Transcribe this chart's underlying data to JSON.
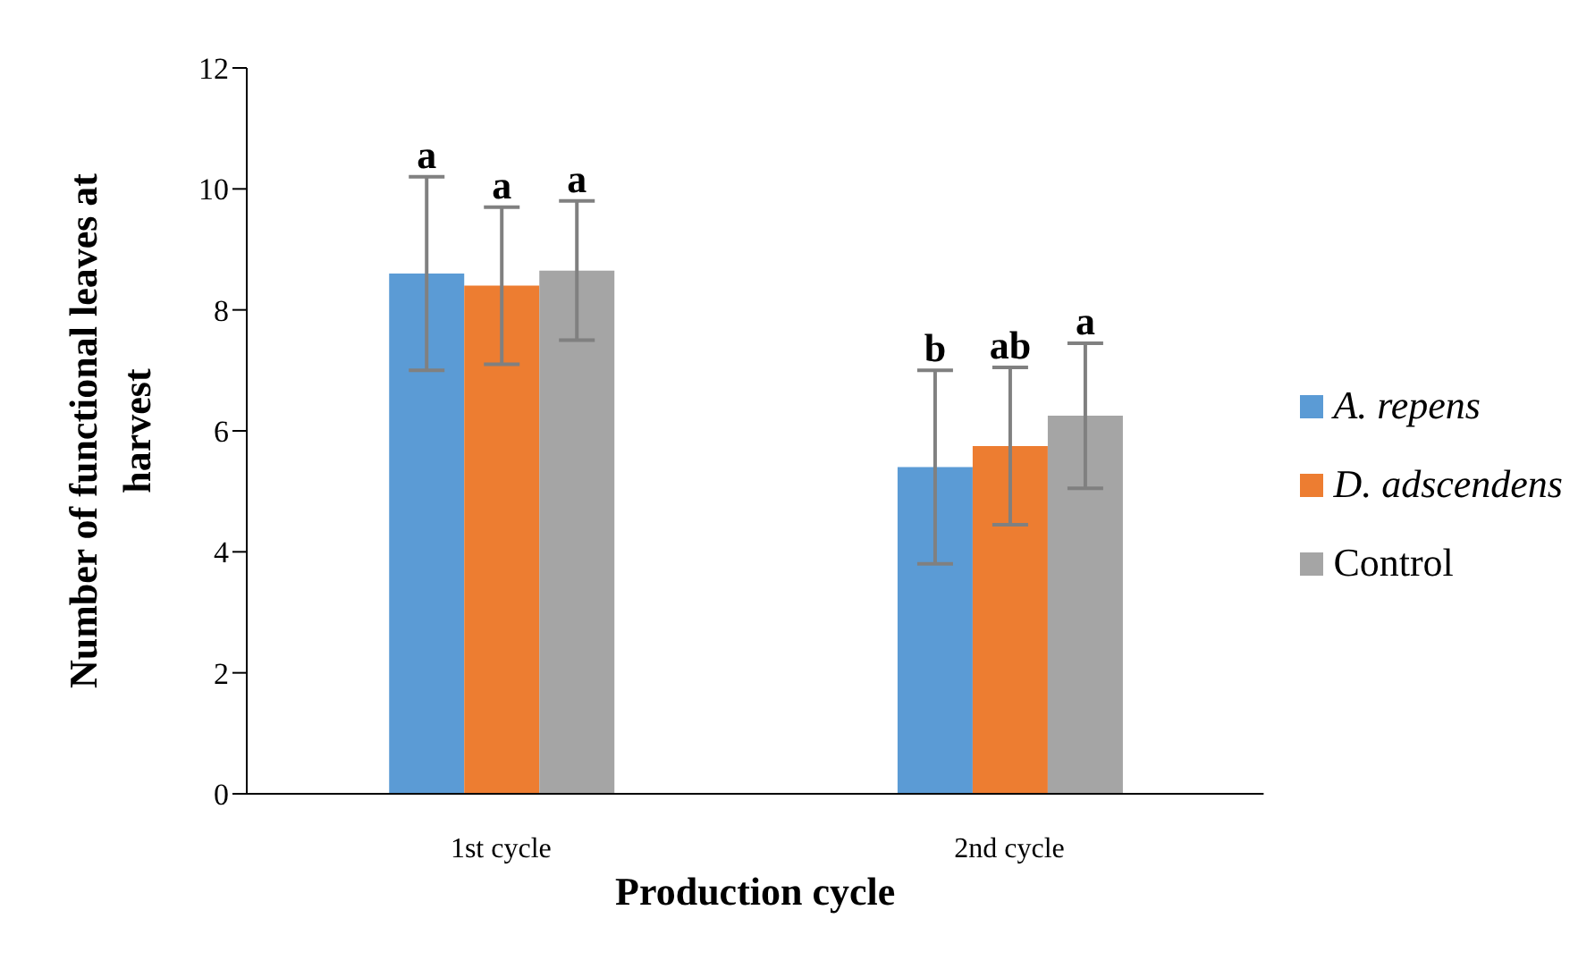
{
  "chart_data": {
    "type": "bar",
    "xlabel": "Production cycle",
    "ylabel": "Number of functional leaves at harvest",
    "categories": [
      "1st cycle",
      "2nd cycle"
    ],
    "series": [
      {
        "name": "A. repens",
        "color": "#5b9bd5",
        "values": [
          8.6,
          5.4
        ],
        "errors": [
          1.6,
          1.6
        ]
      },
      {
        "name": "D. adscendens",
        "color": "#ed7d31",
        "values": [
          8.4,
          5.75
        ],
        "errors": [
          1.3,
          1.3
        ]
      },
      {
        "name": "Control",
        "color": "#a5a5a5",
        "values": [
          8.65,
          6.25
        ],
        "errors": [
          1.15,
          1.2
        ]
      }
    ],
    "ylim": [
      0,
      12
    ],
    "yticks": [
      0,
      2,
      4,
      6,
      8,
      10,
      12
    ],
    "grid": false,
    "legend": "right",
    "annotations": [
      "a",
      "a",
      "a",
      "b",
      "ab",
      "a"
    ]
  }
}
